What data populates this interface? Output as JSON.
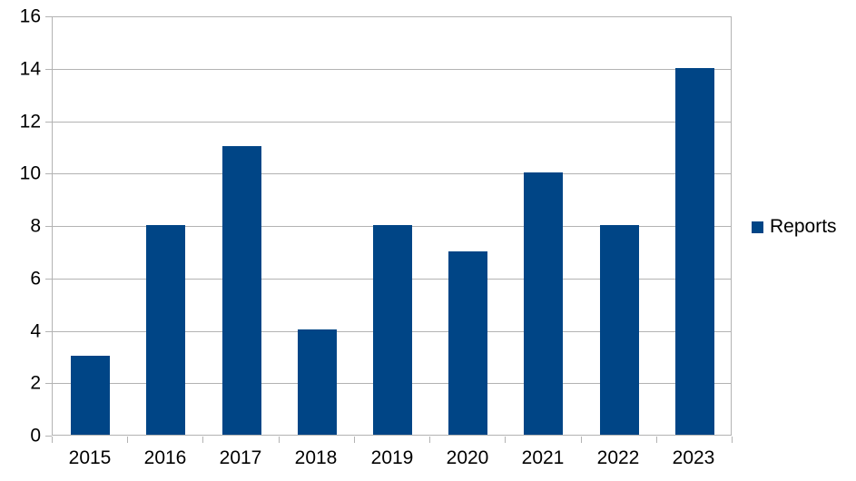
{
  "chart_data": {
    "type": "bar",
    "title": "",
    "categories": [
      "2015",
      "2016",
      "2017",
      "2018",
      "2019",
      "2020",
      "2021",
      "2022",
      "2023"
    ],
    "series": [
      {
        "name": "Reports",
        "values": [
          3,
          8,
          11,
          4,
          8,
          7,
          10,
          8,
          14
        ]
      }
    ],
    "xlabel": "",
    "ylabel": "",
    "ylim": [
      0,
      16
    ],
    "yticks": [
      0,
      2,
      4,
      6,
      8,
      10,
      12,
      14,
      16
    ],
    "grid": true,
    "legend_position": "right-middle",
    "colors": {
      "bar": "#004586",
      "grid": "#b3b3b3",
      "text": "#000000",
      "background": "#ffffff"
    }
  },
  "legend": {
    "swatch_icon": "blue-square-icon"
  }
}
